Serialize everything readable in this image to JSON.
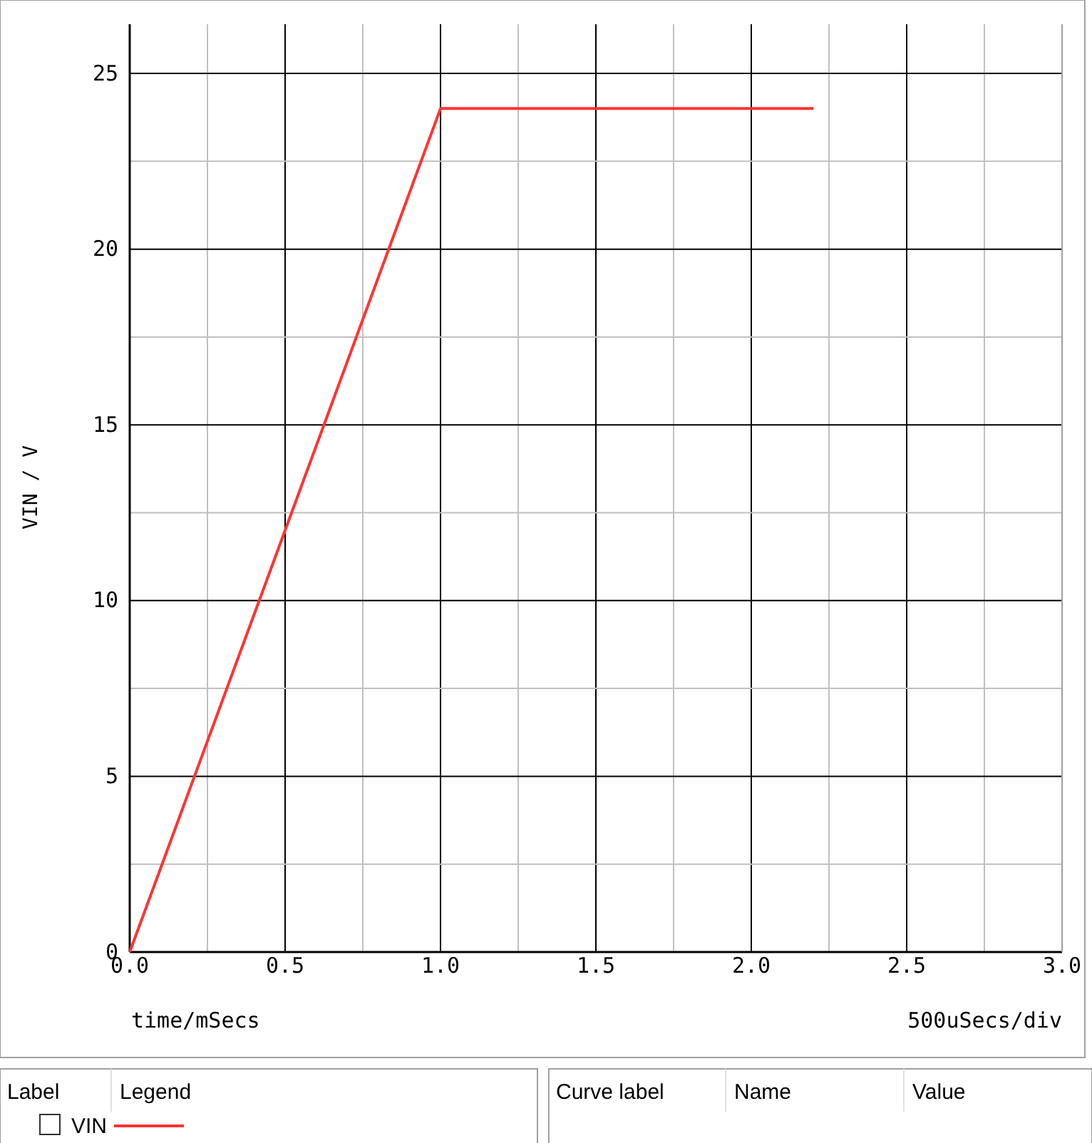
{
  "chart_data": {
    "type": "line",
    "xlabel": "time/mSecs",
    "ylabel": "VIN / V",
    "series": [
      {
        "name": "VIN",
        "color": "#ff3333",
        "x": [
          0,
          1.0,
          2.2
        ],
        "values": [
          0,
          24,
          24
        ]
      }
    ],
    "xlim": [
      0,
      3.0
    ],
    "ylim": [
      0,
      26.4
    ],
    "xticks": [
      {
        "value": 0,
        "label": "0.0"
      },
      {
        "value": 0.25,
        "label": null
      },
      {
        "value": 0.5,
        "label": "0.5"
      },
      {
        "value": 0.75,
        "label": null
      },
      {
        "value": 1,
        "label": "1.0"
      },
      {
        "value": 1.25,
        "label": null
      },
      {
        "value": 1.5,
        "label": "1.5"
      },
      {
        "value": 1.75,
        "label": null
      },
      {
        "value": 2,
        "label": "2.0"
      },
      {
        "value": 2.25,
        "label": null
      },
      {
        "value": 2.5,
        "label": "2.5"
      },
      {
        "value": 2.75,
        "label": null
      },
      {
        "value": 3,
        "label": "3.0"
      }
    ],
    "yticks": [
      0,
      {
        "value": 2.5,
        "label": null
      },
      5,
      {
        "value": 7.5,
        "label": null
      },
      10,
      {
        "value": 12.5,
        "label": null
      },
      15,
      {
        "value": 17.5,
        "label": null
      },
      20,
      {
        "value": 22.5,
        "label": null
      },
      25
    ],
    "grid": true,
    "legend": "bottom left",
    "line_style": "solid",
    "marker": "none",
    "annotations": [
      "500uSecs/div",
      "Label",
      "Legend",
      "Curve label",
      "Name",
      "Value"
    ]
  }
}
